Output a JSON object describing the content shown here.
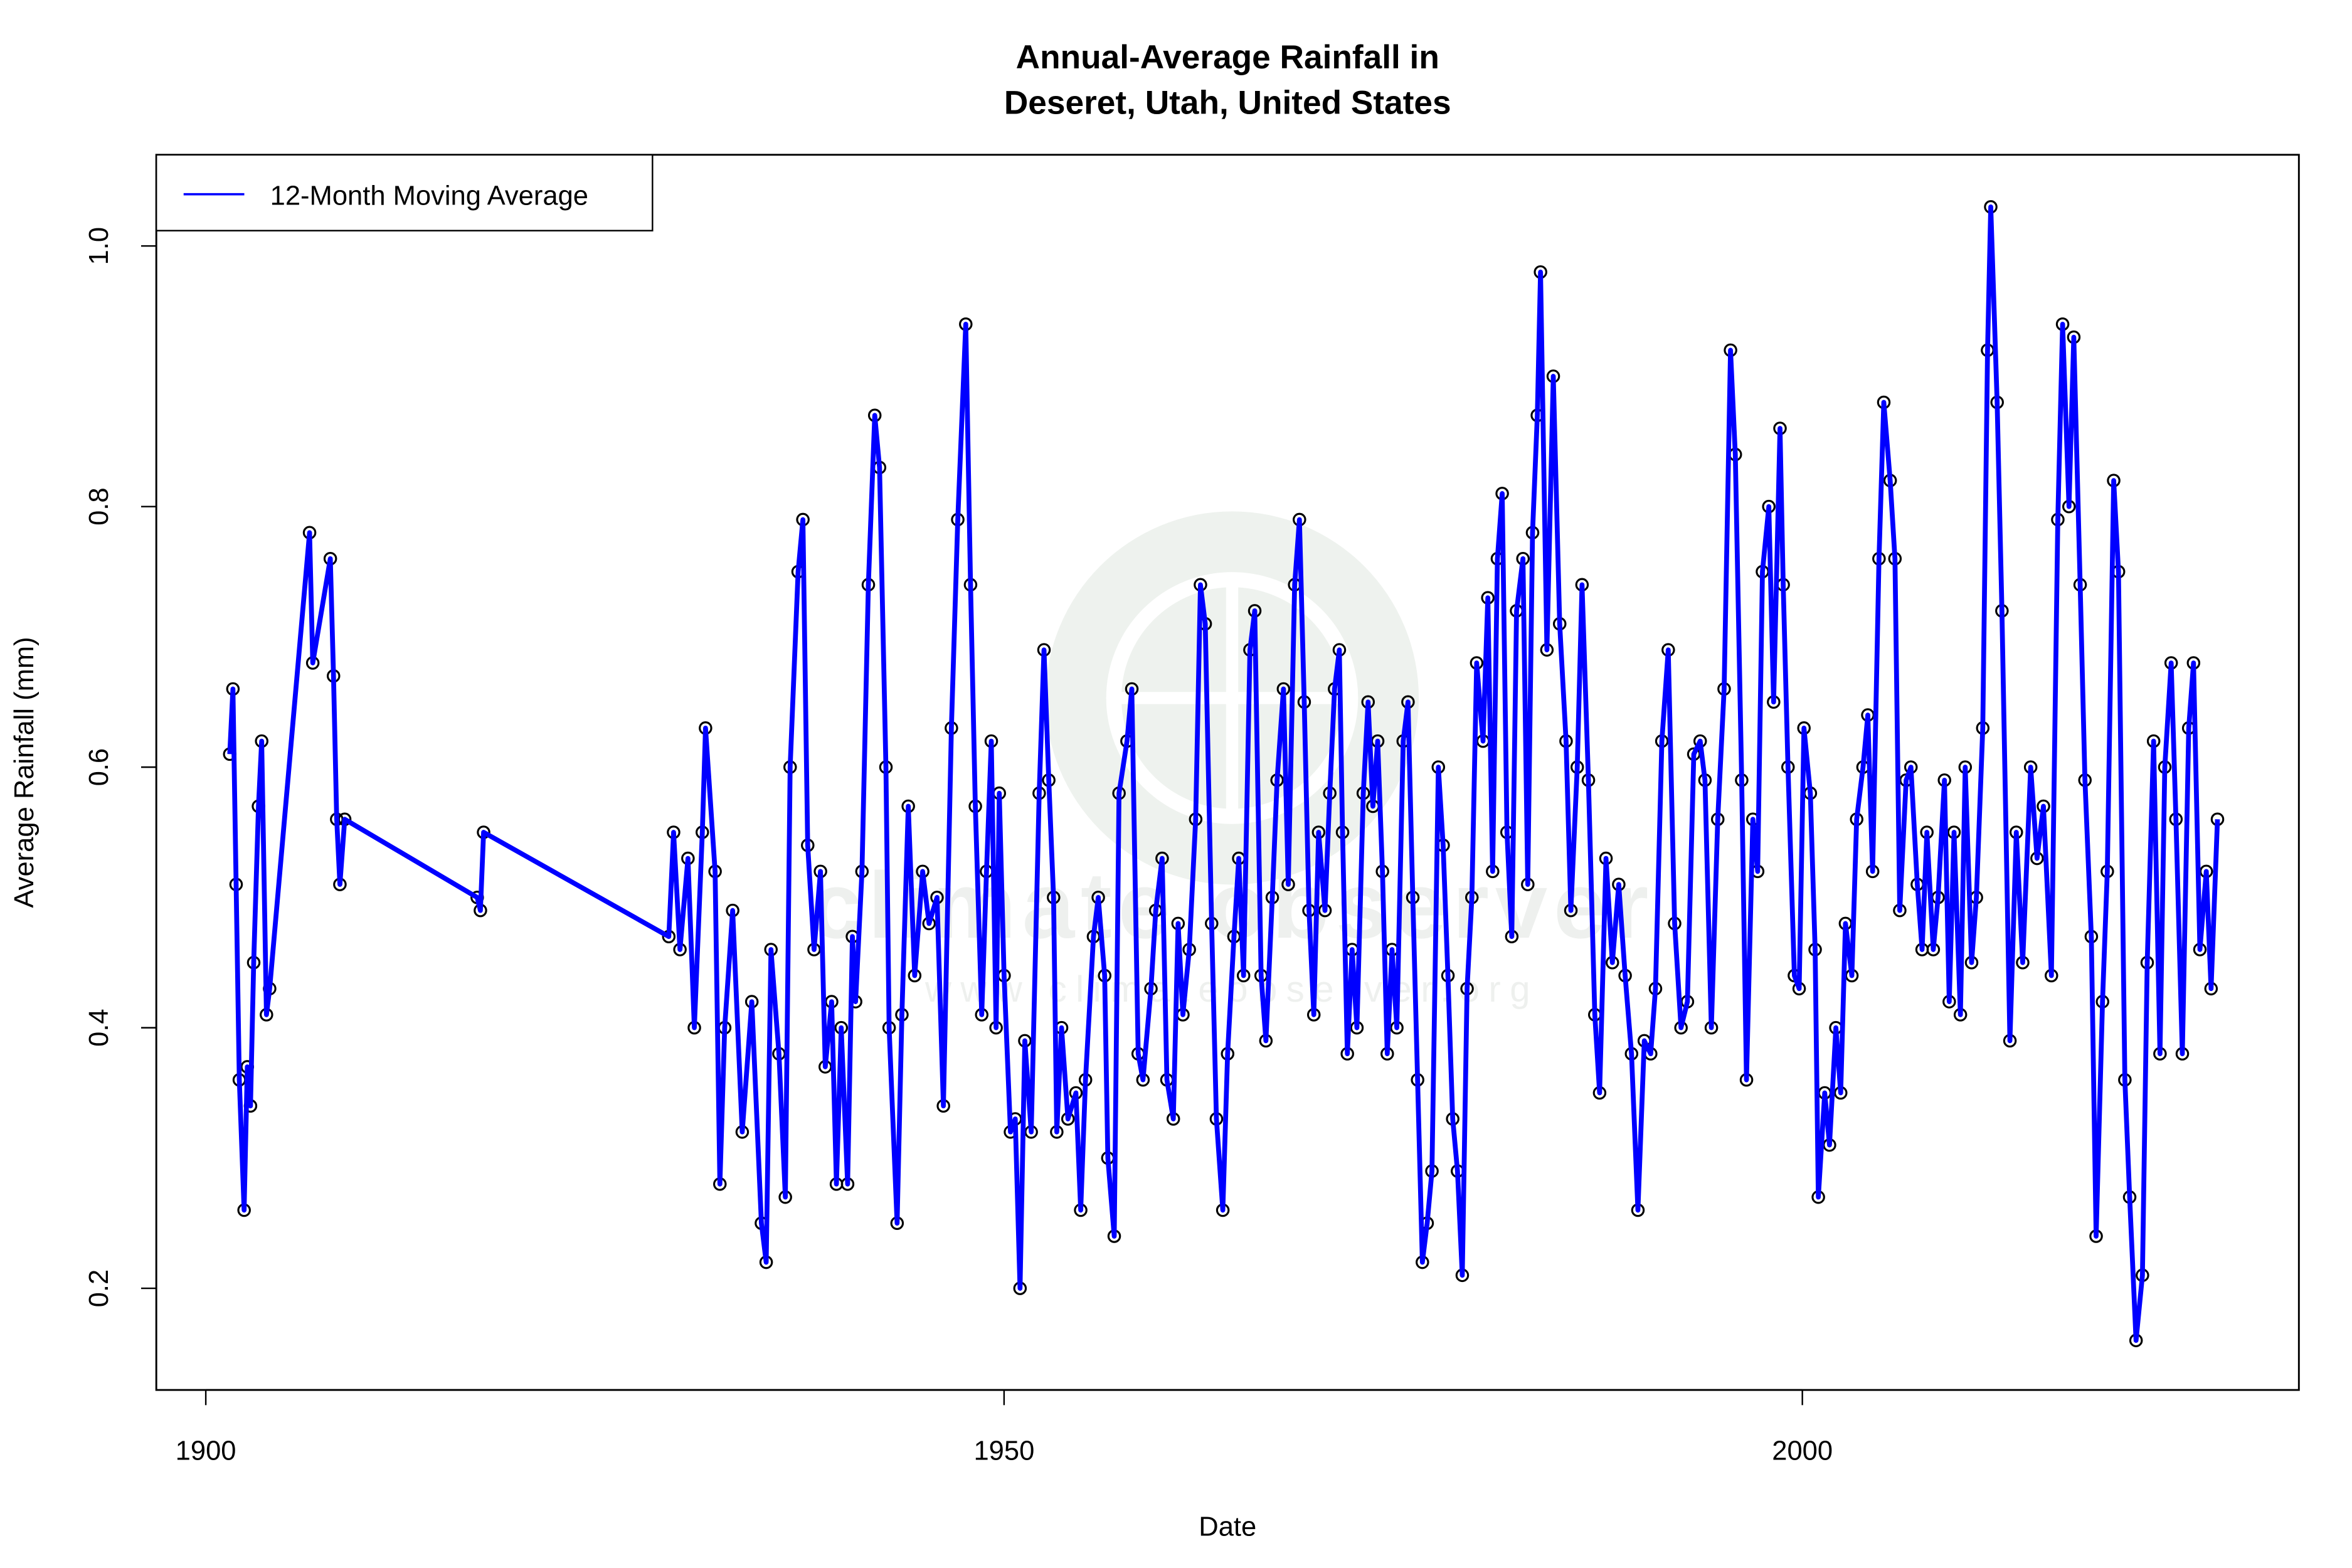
{
  "watermark": {
    "text": "climate observer",
    "url_text": "www.climateobserver.org",
    "color": "#eef2ee"
  },
  "chart_data": {
    "type": "line",
    "title": "Annual-Average Rainfall in",
    "subtitle": "Deseret, Utah, United States",
    "xlabel": "Date",
    "ylabel": "Average Rainfall (mm)",
    "xlim": [
      1896.9,
      2031.1
    ],
    "ylim": [
      0.122,
      1.07
    ],
    "xticks": [
      1900,
      1950,
      2000
    ],
    "xtick_labels": [
      "1900",
      "1950",
      "2000"
    ],
    "yticks": [
      0.2,
      0.4,
      0.6,
      0.8,
      1.0
    ],
    "ytick_labels": [
      "0.2",
      "0.4",
      "0.6",
      "0.8",
      "1.0"
    ],
    "grid": false,
    "legend": {
      "placement": "top-left",
      "entries": [
        "12-Month Moving Average"
      ]
    },
    "colors": {
      "line": "#0000ff",
      "markers": "#000000"
    },
    "markers": "open-circle",
    "series": [
      {
        "name": "12-Month Moving Average",
        "x": [
          1901.5,
          1901.7,
          1901.9,
          1902.1,
          1902.4,
          1902.6,
          1902.8,
          1903.0,
          1903.3,
          1903.5,
          1903.8,
          1904.0,
          1906.5,
          1906.7,
          1907.8,
          1908.0,
          1908.2,
          1908.4,
          1908.7,
          1917.0,
          1917.2,
          1917.4,
          1929.0,
          1929.3,
          1929.7,
          1930.2,
          1930.6,
          1931.1,
          1931.3,
          1931.9,
          1932.2,
          1932.5,
          1933.0,
          1933.6,
          1934.2,
          1934.8,
          1935.1,
          1935.4,
          1935.9,
          1936.3,
          1936.6,
          1937.1,
          1937.4,
          1937.7,
          1938.1,
          1938.5,
          1938.8,
          1939.2,
          1939.5,
          1939.8,
          1940.2,
          1940.5,
          1940.7,
          1941.1,
          1941.5,
          1941.9,
          1942.2,
          1942.6,
          1942.8,
          1943.3,
          1943.6,
          1944.0,
          1944.4,
          1944.9,
          1945.3,
          1945.8,
          1946.2,
          1946.7,
          1947.1,
          1947.6,
          1947.9,
          1948.2,
          1948.6,
          1948.9,
          1949.2,
          1949.5,
          1949.7,
          1950.0,
          1950.4,
          1950.7,
          1951.0,
          1951.3,
          1951.7,
          1952.2,
          1952.5,
          1952.8,
          1953.1,
          1953.3,
          1953.6,
          1954.0,
          1954.5,
          1954.8,
          1955.1,
          1955.6,
          1955.9,
          1956.3,
          1956.5,
          1956.9,
          1957.2,
          1957.7,
          1958.0,
          1958.4,
          1958.7,
          1959.2,
          1959.5,
          1959.9,
          1960.2,
          1960.6,
          1960.9,
          1961.2,
          1961.6,
          1962.0,
          1962.3,
          1962.6,
          1963.0,
          1963.3,
          1963.7,
          1964.0,
          1964.4,
          1964.7,
          1965.0,
          1965.4,
          1965.7,
          1966.1,
          1966.4,
          1966.8,
          1967.1,
          1967.5,
          1967.8,
          1968.2,
          1968.5,
          1968.8,
          1969.1,
          1969.4,
          1969.7,
          1970.1,
          1970.4,
          1970.7,
          1971.0,
          1971.2,
          1971.5,
          1971.8,
          1972.1,
          1972.5,
          1972.8,
          1973.1,
          1973.4,
          1973.7,
          1974.0,
          1974.3,
          1974.6,
          1975.0,
          1975.3,
          1975.6,
          1975.9,
          1976.2,
          1976.5,
          1976.8,
          1977.2,
          1977.5,
          1977.8,
          1978.1,
          1978.4,
          1978.7,
          1979.0,
          1979.3,
          1979.6,
          1980.0,
          1980.3,
          1980.6,
          1980.9,
          1981.2,
          1981.5,
          1981.8,
          1982.1,
          1982.5,
          1982.8,
          1983.1,
          1983.4,
          1983.6,
          1984.0,
          1984.4,
          1984.8,
          1985.2,
          1985.5,
          1985.9,
          1986.2,
          1986.6,
          1987.0,
          1987.3,
          1987.7,
          1988.1,
          1988.5,
          1988.9,
          1989.3,
          1989.7,
          1990.1,
          1990.5,
          1990.8,
          1991.2,
          1991.6,
          1992.0,
          1992.4,
          1992.8,
          1993.2,
          1993.6,
          1993.9,
          1994.3,
          1994.7,
          1995.1,
          1995.5,
          1995.8,
          1996.2,
          1996.5,
          1996.9,
          1997.2,
          1997.5,
          1997.9,
          1998.2,
          1998.6,
          1998.8,
          1999.1,
          1999.5,
          1999.8,
          2000.1,
          2000.5,
          2000.8,
          2001.0,
          2001.4,
          2001.7,
          2002.1,
          2002.4,
          2002.7,
          2003.1,
          2003.4,
          2003.8,
          2004.1,
          2004.4,
          2004.8,
          2005.1,
          2005.5,
          2005.8,
          2006.1,
          2006.5,
          2006.8,
          2007.2,
          2007.5,
          2007.8,
          2008.2,
          2008.5,
          2008.9,
          2009.2,
          2009.5,
          2009.9,
          2010.2,
          2010.6,
          2010.9,
          2011.3,
          2011.6,
          2011.8,
          2012.2,
          2012.5,
          2013.0,
          2013.4,
          2013.8,
          2014.3,
          2014.7,
          2015.1,
          2015.6,
          2016.0,
          2016.3,
          2016.7,
          2017.0,
          2017.4,
          2017.7,
          2018.1,
          2018.4,
          2018.8,
          2019.1,
          2019.5,
          2019.8,
          2020.2,
          2020.5,
          2020.9,
          2021.3,
          2021.6,
          2022.0,
          2022.4,
          2022.7,
          2023.1,
          2023.4,
          2023.8,
          2024.2,
          2024.5,
          2024.9,
          2025.3,
          2025.6,
          2026.0
        ],
        "y": [
          0.61,
          0.66,
          0.51,
          0.36,
          0.26,
          0.37,
          0.34,
          0.45,
          0.57,
          0.62,
          0.41,
          0.43,
          0.78,
          0.68,
          0.76,
          0.67,
          0.56,
          0.51,
          0.56,
          0.5,
          0.49,
          0.55,
          0.47,
          0.55,
          0.46,
          0.53,
          0.4,
          0.55,
          0.63,
          0.52,
          0.28,
          0.4,
          0.49,
          0.32,
          0.42,
          0.25,
          0.22,
          0.46,
          0.38,
          0.27,
          0.6,
          0.75,
          0.79,
          0.54,
          0.46,
          0.52,
          0.37,
          0.42,
          0.28,
          0.4,
          0.28,
          0.47,
          0.42,
          0.52,
          0.74,
          0.87,
          0.83,
          0.6,
          0.4,
          0.25,
          0.41,
          0.57,
          0.44,
          0.52,
          0.48,
          0.5,
          0.34,
          0.63,
          0.79,
          0.94,
          0.74,
          0.57,
          0.41,
          0.52,
          0.62,
          0.4,
          0.58,
          0.44,
          0.32,
          0.33,
          0.2,
          0.39,
          0.32,
          0.58,
          0.69,
          0.59,
          0.5,
          0.32,
          0.4,
          0.33,
          0.35,
          0.26,
          0.36,
          0.47,
          0.5,
          0.44,
          0.3,
          0.24,
          0.58,
          0.62,
          0.66,
          0.38,
          0.36,
          0.43,
          0.49,
          0.53,
          0.36,
          0.33,
          0.48,
          0.41,
          0.46,
          0.56,
          0.74,
          0.71,
          0.48,
          0.33,
          0.26,
          0.38,
          0.47,
          0.53,
          0.44,
          0.69,
          0.72,
          0.44,
          0.39,
          0.5,
          0.59,
          0.66,
          0.51,
          0.74,
          0.79,
          0.65,
          0.49,
          0.41,
          0.55,
          0.49,
          0.58,
          0.66,
          0.69,
          0.55,
          0.38,
          0.46,
          0.4,
          0.58,
          0.65,
          0.57,
          0.62,
          0.52,
          0.38,
          0.46,
          0.4,
          0.62,
          0.65,
          0.5,
          0.36,
          0.22,
          0.25,
          0.29,
          0.6,
          0.54,
          0.44,
          0.33,
          0.29,
          0.21,
          0.43,
          0.5,
          0.68,
          0.62,
          0.73,
          0.52,
          0.76,
          0.81,
          0.55,
          0.47,
          0.72,
          0.76,
          0.51,
          0.78,
          0.87,
          0.98,
          0.69,
          0.9,
          0.71,
          0.62,
          0.49,
          0.6,
          0.74,
          0.59,
          0.41,
          0.35,
          0.53,
          0.45,
          0.51,
          0.44,
          0.38,
          0.26,
          0.39,
          0.38,
          0.43,
          0.62,
          0.69,
          0.48,
          0.4,
          0.42,
          0.61,
          0.62,
          0.59,
          0.4,
          0.56,
          0.66,
          0.92,
          0.84,
          0.59,
          0.36,
          0.56,
          0.52,
          0.75,
          0.8,
          0.65,
          0.86,
          0.74,
          0.6,
          0.44,
          0.43,
          0.63,
          0.58,
          0.46,
          0.27,
          0.35,
          0.31,
          0.4,
          0.35,
          0.48,
          0.44,
          0.56,
          0.6,
          0.64,
          0.52,
          0.76,
          0.88,
          0.82,
          0.76,
          0.49,
          0.59,
          0.6,
          0.51,
          0.46,
          0.55,
          0.46,
          0.5,
          0.59,
          0.42,
          0.55,
          0.41,
          0.6,
          0.45,
          0.5,
          0.63,
          0.92,
          1.03,
          0.88,
          0.72,
          0.39,
          0.55,
          0.45,
          0.6,
          0.53,
          0.57,
          0.44,
          0.79,
          0.94,
          0.8,
          0.93,
          0.74,
          0.59,
          0.47,
          0.24,
          0.42,
          0.52,
          0.82,
          0.75,
          0.36,
          0.27,
          0.16,
          0.21,
          0.45,
          0.62,
          0.38,
          0.6,
          0.68,
          0.56,
          0.38,
          0.63,
          0.68,
          0.46,
          0.52,
          0.43,
          0.56
        ]
      }
    ]
  }
}
